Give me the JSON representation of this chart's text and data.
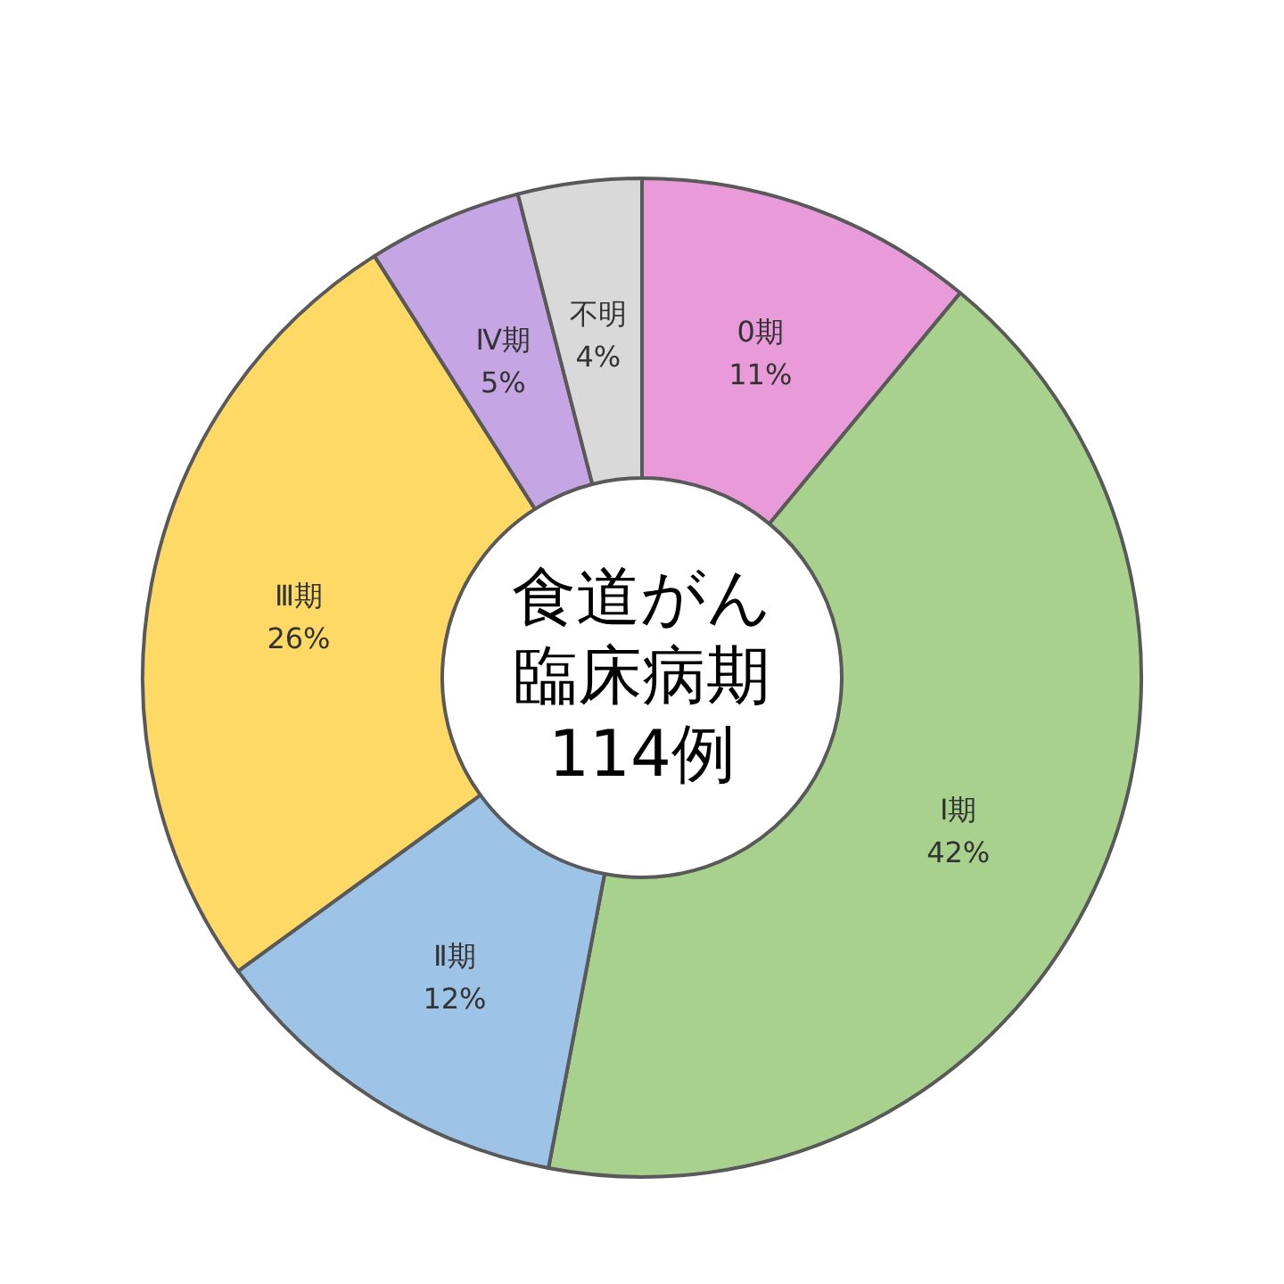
{
  "chart_data": {
    "type": "donut",
    "title": "食道がん臨床病期",
    "subtitle": "114例",
    "categories": [
      "0期",
      "Ⅰ期",
      "Ⅱ期",
      "Ⅲ期",
      "Ⅳ期",
      "不明"
    ],
    "values": [
      11,
      42,
      12,
      26,
      5,
      4
    ],
    "value_labels": [
      "11%",
      "42%",
      "12%",
      "26%",
      "5%",
      "4%"
    ],
    "colors": [
      "#e99bd9",
      "#a9d18e",
      "#9dc3e6",
      "#ffd966",
      "#c5a5e3",
      "#d9d9d9"
    ]
  }
}
